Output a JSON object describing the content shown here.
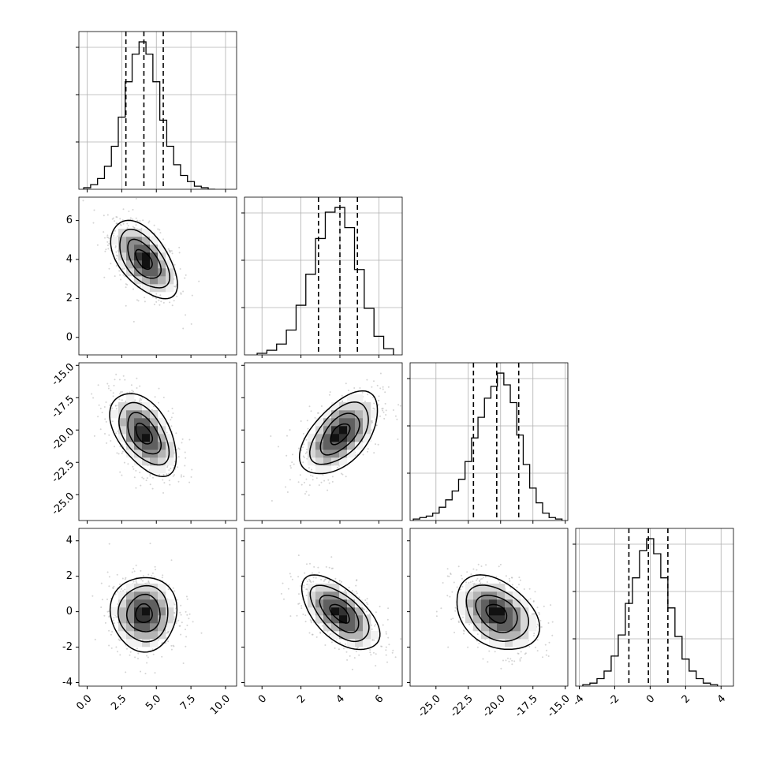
{
  "chart_data": {
    "type": "corner",
    "title": "",
    "parameters": [
      {
        "index": 0,
        "range": [
          -0.6,
          10.8
        ],
        "ticks": [
          "0.0",
          "2.5",
          "5.0",
          "7.5",
          "10.0"
        ],
        "tick_values": [
          0,
          2.5,
          5,
          7.5,
          10
        ],
        "quantiles": [
          2.8,
          4.1,
          5.5
        ],
        "mean": 4.1,
        "sd": 1.2
      },
      {
        "index": 1,
        "range": [
          -0.9,
          7.2
        ],
        "ticks": [
          "0",
          "2",
          "4",
          "6"
        ],
        "tick_values": [
          0,
          2,
          4,
          6
        ],
        "quantiles": [
          2.9,
          4.0,
          4.9
        ],
        "mean": 4.0,
        "sd": 1.0
      },
      {
        "index": 2,
        "range": [
          -27.0,
          -14.8
        ],
        "ticks": [
          "-25.0",
          "-22.5",
          "-20.0",
          "-17.5",
          "-15.0"
        ],
        "tick_values": [
          -25,
          -22.5,
          -20,
          -17.5,
          -15
        ],
        "quantiles": [
          -22.1,
          -20.3,
          -18.6
        ],
        "mean": -20.3,
        "sd": 1.6
      },
      {
        "index": 3,
        "range": [
          -4.2,
          4.7
        ],
        "ticks": [
          "-4",
          "-2",
          "0",
          "2",
          "4"
        ],
        "tick_values": [
          -4,
          -2,
          0,
          2,
          4
        ],
        "quantiles": [
          -1.2,
          -0.1,
          1.0
        ],
        "mean": -0.1,
        "sd": 1.05
      }
    ],
    "histograms": [
      {
        "param": 0,
        "bin_centers": [
          0.0,
          0.5,
          1.0,
          1.5,
          2.0,
          2.5,
          3.0,
          3.5,
          4.0,
          4.5,
          5.0,
          5.5,
          6.0,
          6.5,
          7.0,
          7.5,
          8.0,
          8.5,
          9.0
        ],
        "counts": [
          1,
          3,
          7,
          15,
          28,
          47,
          70,
          88,
          96,
          88,
          70,
          45,
          28,
          16,
          9,
          5,
          2,
          1,
          0
        ]
      },
      {
        "param": 1,
        "bin_centers": [
          0.0,
          0.5,
          1.0,
          1.5,
          2.0,
          2.5,
          3.0,
          3.5,
          4.0,
          4.5,
          5.0,
          5.5,
          6.0,
          6.5
        ],
        "counts": [
          1,
          3,
          7,
          16,
          32,
          52,
          75,
          92,
          95,
          82,
          55,
          30,
          12,
          4
        ]
      },
      {
        "param": 2,
        "bin_centers": [
          -26.5,
          -26.0,
          -25.5,
          -25.0,
          -24.5,
          -24.0,
          -23.5,
          -23.0,
          -22.5,
          -22.0,
          -21.5,
          -21.0,
          -20.5,
          -20.0,
          -19.5,
          -19.0,
          -18.5,
          -18.0,
          -17.5,
          -17.0,
          -16.5,
          -16.0,
          -15.5
        ],
        "counts": [
          1,
          2,
          3,
          5,
          9,
          14,
          20,
          28,
          40,
          56,
          70,
          83,
          91,
          100,
          92,
          80,
          58,
          38,
          22,
          12,
          5,
          2,
          1
        ]
      },
      {
        "param": 3,
        "bin_centers": [
          -3.6,
          -3.2,
          -2.8,
          -2.4,
          -2.0,
          -1.6,
          -1.2,
          -0.8,
          -0.4,
          0.0,
          0.4,
          0.8,
          1.2,
          1.6,
          2.0,
          2.4,
          2.8,
          3.2,
          3.6
        ],
        "counts": [
          1,
          2,
          5,
          10,
          20,
          34,
          55,
          72,
          90,
          98,
          88,
          72,
          52,
          33,
          18,
          10,
          5,
          2,
          1
        ]
      }
    ],
    "pairs": [
      {
        "x": 0,
        "y": 1,
        "correlation": -0.55
      },
      {
        "x": 0,
        "y": 2,
        "correlation": -0.5
      },
      {
        "x": 1,
        "y": 2,
        "correlation": 0.55
      },
      {
        "x": 0,
        "y": 3,
        "correlation": 0.0
      },
      {
        "x": 1,
        "y": 3,
        "correlation": -0.6
      },
      {
        "x": 2,
        "y": 3,
        "correlation": -0.35
      }
    ],
    "contour_levels": [
      "0.5σ",
      "1σ",
      "1.5σ",
      "2σ"
    ],
    "grid": true,
    "line_color": "#000000",
    "point_color": "#b0b0b0"
  }
}
